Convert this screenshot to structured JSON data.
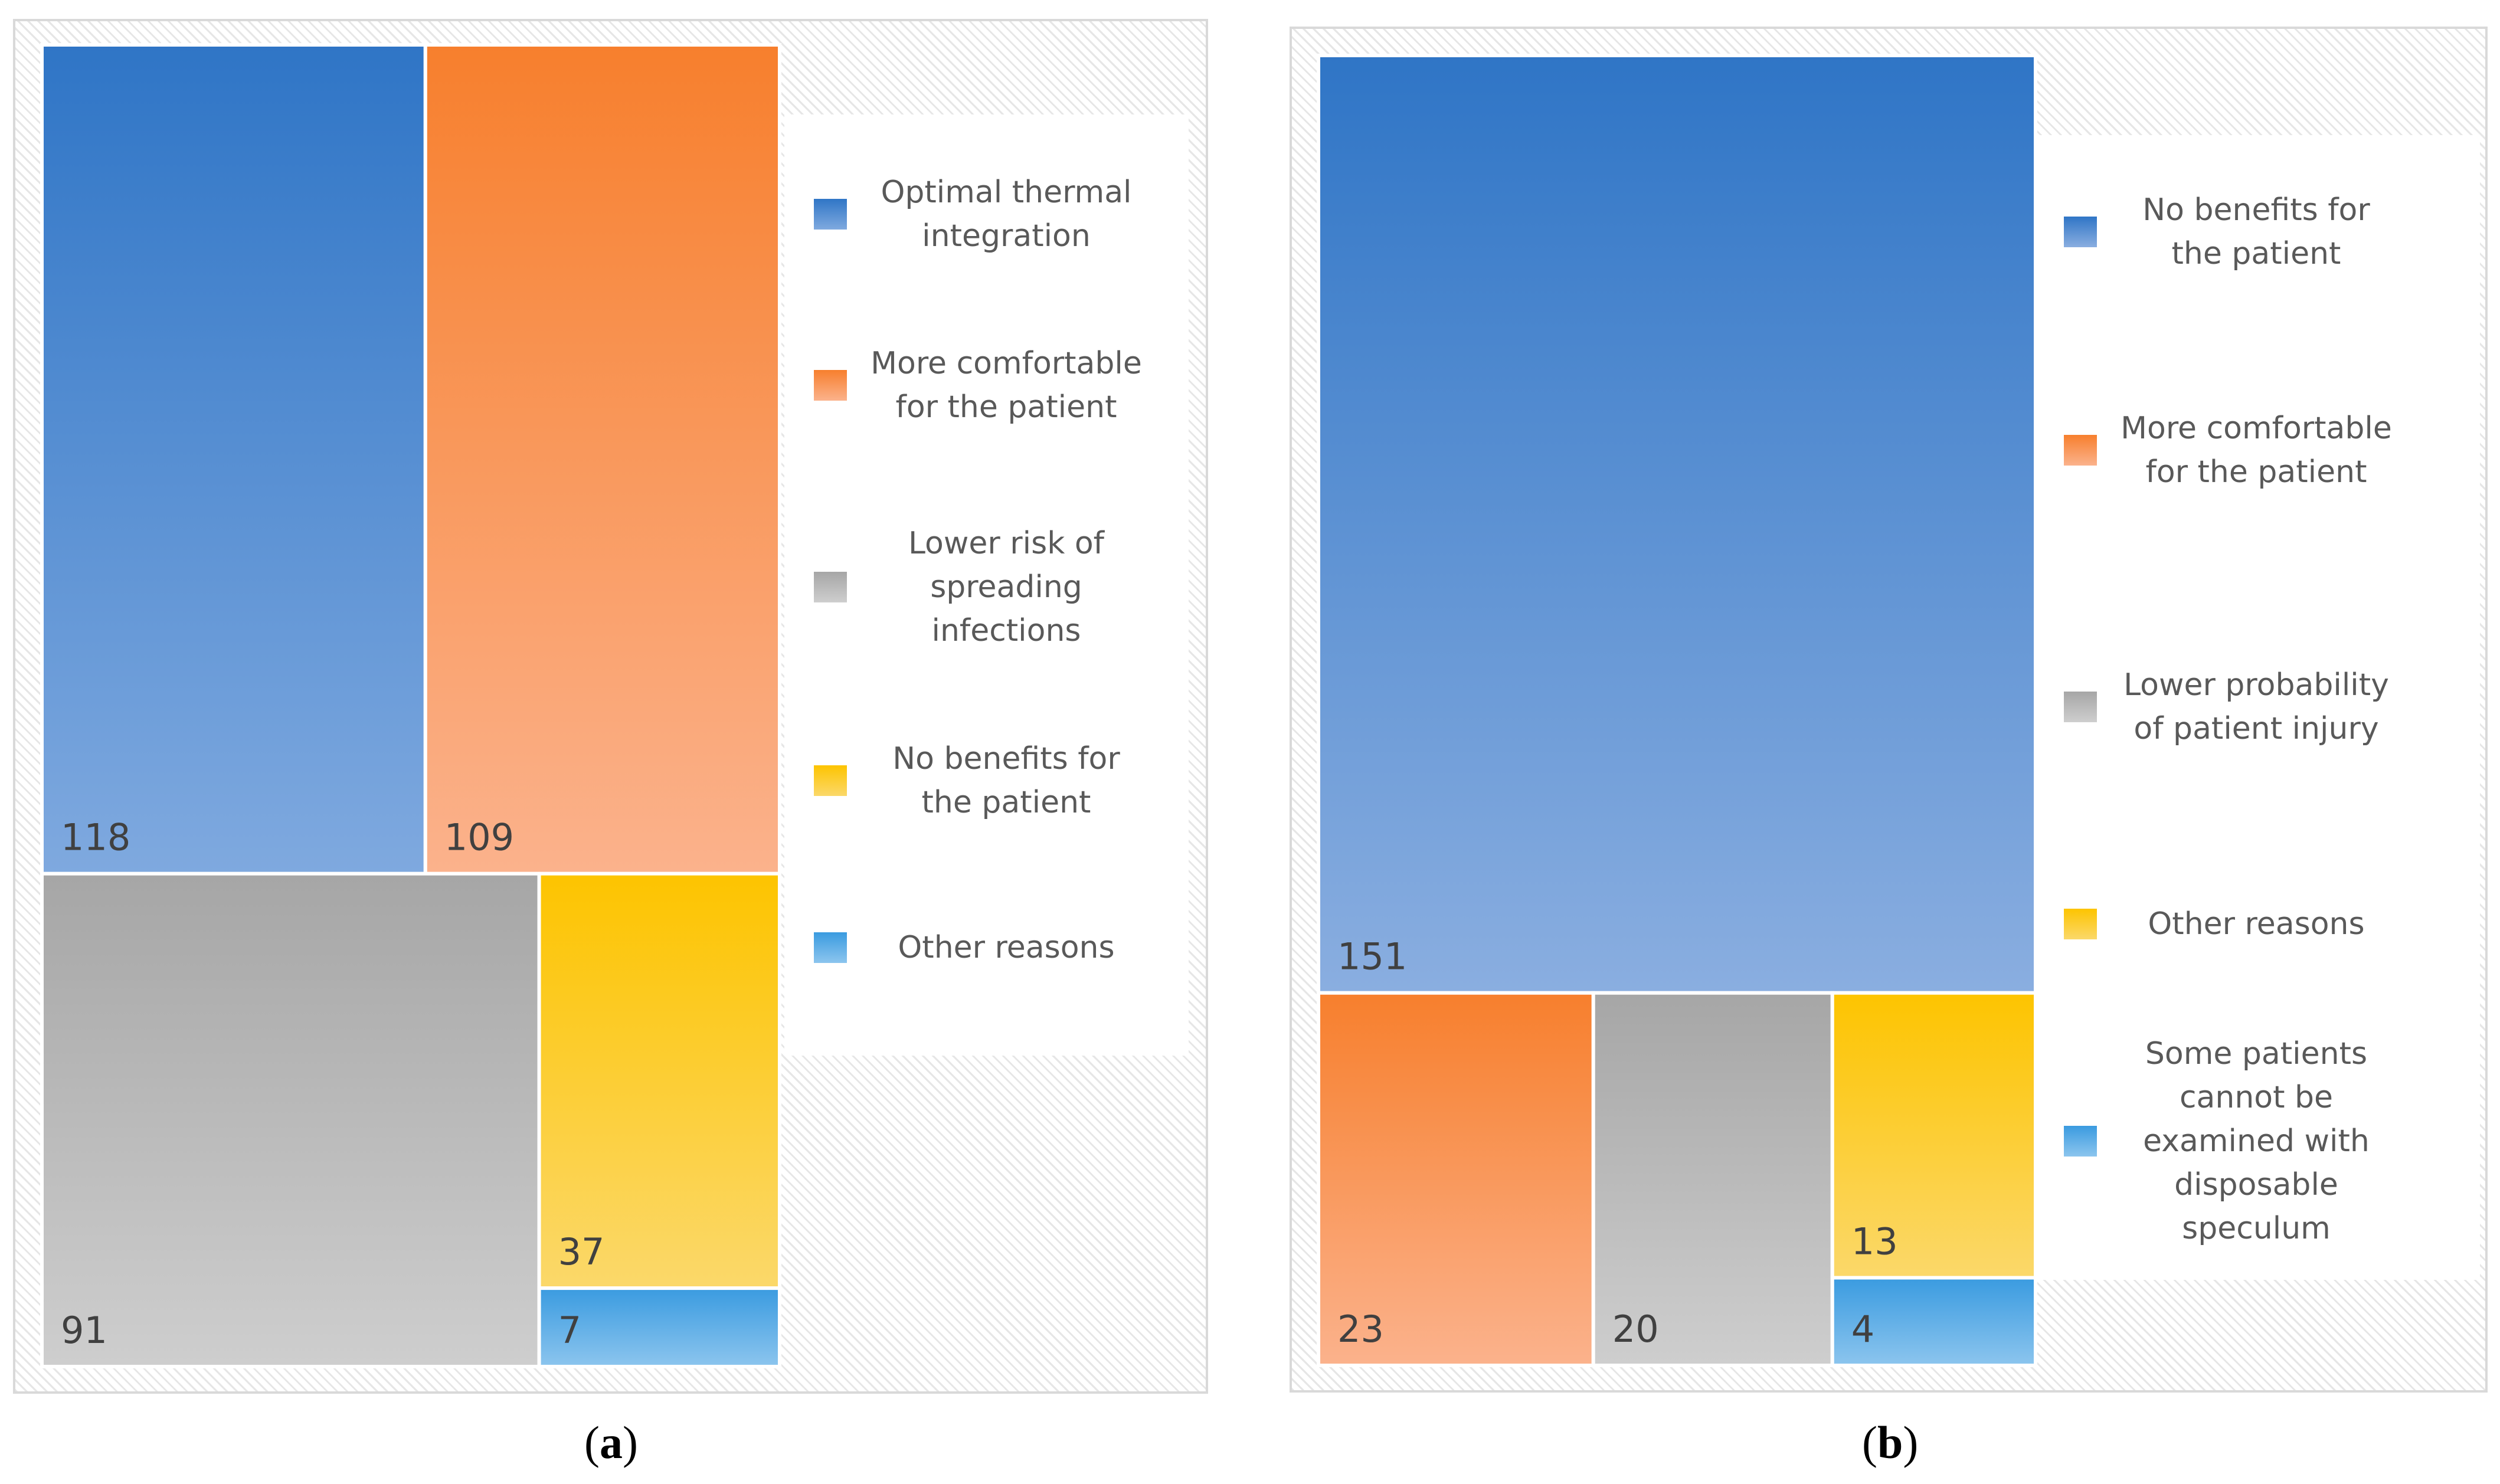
{
  "chart_data": [
    {
      "type": "treemap",
      "panel": "a",
      "caption_letter": "a",
      "items": [
        {
          "label": "Optimal thermal integration",
          "value": 118,
          "color_top": "#2f75c6",
          "color_bottom": "#7fa9df"
        },
        {
          "label": "More comfortable for the patient",
          "value": 109,
          "color_top": "#f77f2d",
          "color_bottom": "#fbb28c"
        },
        {
          "label": "Lower risk of spreading infections",
          "value": 91,
          "color_top": "#a6a6a6",
          "color_bottom": "#cecece"
        },
        {
          "label": "No benefits for the patient",
          "value": 37,
          "color_top": "#fdc400",
          "color_bottom": "#fbd86a"
        },
        {
          "label": "Other reasons",
          "value": 7,
          "color_top": "#3a9be0",
          "color_bottom": "#8cc5ee"
        }
      ],
      "legend": [
        "Optimal thermal integration",
        "More comfortable for the patient",
        "Lower risk of spreading infections",
        "No benefits for the patient",
        "Other reasons"
      ],
      "legend_placement": "right"
    },
    {
      "type": "treemap",
      "panel": "b",
      "caption_letter": "b",
      "items": [
        {
          "label": "No benefits for the patient",
          "value": 151,
          "color_top": "#2f75c6",
          "color_bottom": "#8aaee0"
        },
        {
          "label": "More comfortable for the patient",
          "value": 23,
          "color_top": "#f77f2d",
          "color_bottom": "#fbb28c"
        },
        {
          "label": "Lower probability of patient injury",
          "value": 20,
          "color_top": "#a6a6a6",
          "color_bottom": "#cecece"
        },
        {
          "label": "Other reasons",
          "value": 13,
          "color_top": "#fdc400",
          "color_bottom": "#fbd86a"
        },
        {
          "label": "Some patients cannot be examined with disposable speculum",
          "value": 4,
          "color_top": "#3a9be0",
          "color_bottom": "#8cc5ee"
        }
      ],
      "legend": [
        "No benefits for the patient",
        "More comfortable for the patient",
        "Lower probability of patient injury",
        "Other reasons",
        "Some patients cannot be examined with disposable speculum"
      ],
      "legend_placement": "right"
    }
  ]
}
